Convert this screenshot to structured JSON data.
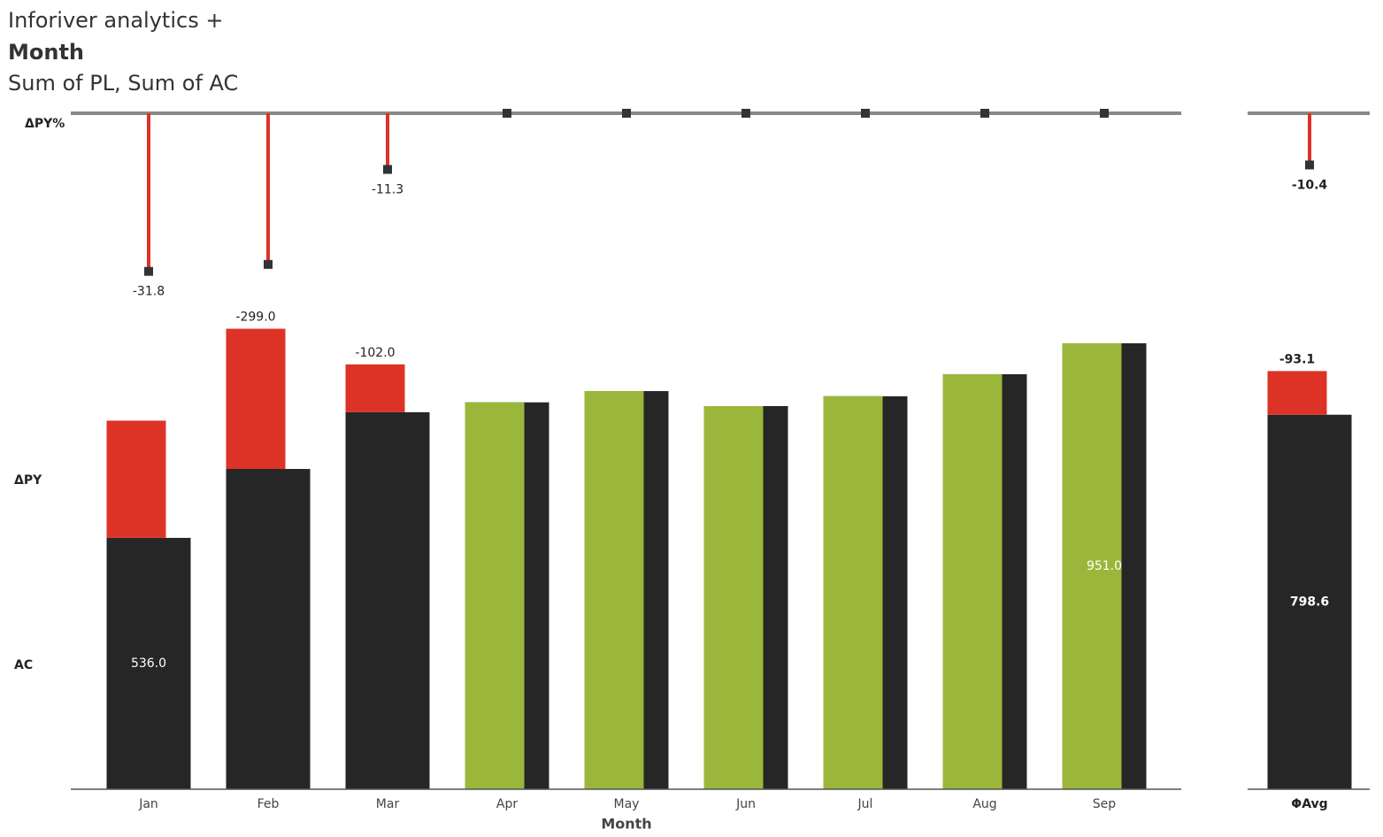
{
  "chart_data": {
    "type": "bar",
    "title": "Inforiver analytics +",
    "subtitle": "Month",
    "description": "Sum of PL, Sum of AC",
    "x_label": "Month",
    "categories": [
      "Jan",
      "Feb",
      "Mar",
      "Apr",
      "May",
      "Jun",
      "Jul",
      "Aug",
      "Sep"
    ],
    "series": [
      {
        "name": "AC",
        "color": "#262626",
        "values": [
          536,
          683,
          804,
          825,
          849,
          817,
          838,
          885,
          951
        ],
        "value_labels": [
          "536.0",
          null,
          null,
          null,
          null,
          null,
          null,
          null,
          "951.0"
        ]
      },
      {
        "name": "ΔPY",
        "negative_color": "#dd3327",
        "positive_color": "#9bb73b",
        "values": [
          -250,
          -299,
          -102,
          0,
          0,
          0,
          0,
          0,
          0
        ],
        "value_labels": [
          null,
          "-299.0",
          "-102.0",
          null,
          null,
          null,
          null,
          null,
          null
        ]
      },
      {
        "name": "ΔPY%",
        "color": "#dd3327",
        "values": [
          -31.8,
          -30.4,
          -11.3,
          0,
          0,
          0,
          0,
          0,
          0
        ],
        "value_labels": [
          "-31.8",
          null,
          "-11.3",
          null,
          null,
          null,
          null,
          null,
          null
        ]
      }
    ],
    "total": {
      "label": "ΦAvg",
      "values": [
        798.6,
        -93.1,
        -10.4
      ],
      "value_labels": [
        "798.6",
        "-93.1",
        "-10.4"
      ]
    }
  }
}
